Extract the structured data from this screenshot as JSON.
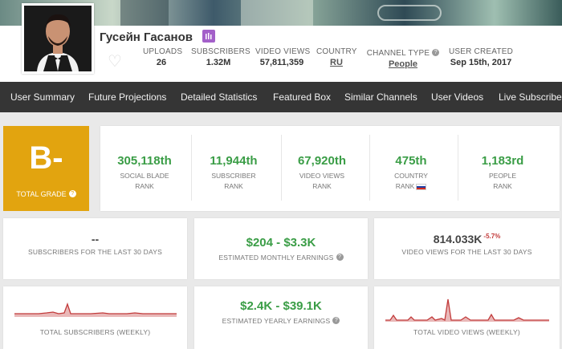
{
  "channel": {
    "name": "Гусейн Гасанов",
    "stats": [
      {
        "label": "UPLOADS",
        "value": "26"
      },
      {
        "label": "SUBSCRIBERS",
        "value": "1.32M"
      },
      {
        "label": "VIDEO VIEWS",
        "value": "57,811,359"
      },
      {
        "label": "COUNTRY",
        "value": "RU"
      },
      {
        "label": "CHANNEL TYPE",
        "value": "People"
      },
      {
        "label": "USER CREATED",
        "value": "Sep 15th, 2017"
      }
    ]
  },
  "nav": [
    "User Summary",
    "Future Projections",
    "Detailed Statistics",
    "Featured Box",
    "Similar Channels",
    "User Videos",
    "Live Subscriber"
  ],
  "grade": {
    "letter": "B-",
    "label": "TOTAL GRADE"
  },
  "ranks": [
    {
      "value": "305,118th",
      "line1": "SOCIAL BLADE",
      "line2": "RANK"
    },
    {
      "value": "11,944th",
      "line1": "SUBSCRIBER",
      "line2": "RANK"
    },
    {
      "value": "67,920th",
      "line1": "VIDEO VIEWS",
      "line2": "RANK"
    },
    {
      "value": "475th",
      "line1": "COUNTRY",
      "line2": "RANK"
    },
    {
      "value": "1,183rd",
      "line1": "PEOPLE",
      "line2": "RANK"
    }
  ],
  "summary": {
    "subs30": {
      "value": "--",
      "label": "SUBSCRIBERS FOR THE LAST 30 DAYS"
    },
    "monthly": {
      "value": "$204 - $3.3K",
      "label": "ESTIMATED MONTHLY EARNINGS"
    },
    "views30": {
      "value": "814.033K",
      "change": "-5.7%",
      "label": "VIDEO VIEWS FOR THE LAST 30 DAYS"
    },
    "weeklySubs": {
      "label": "TOTAL SUBSCRIBERS (WEEKLY)"
    },
    "yearly": {
      "value": "$2.4K - $39.1K",
      "label": "ESTIMATED YEARLY EARNINGS"
    },
    "weeklyViews": {
      "label": "TOTAL VIDEO VIEWS (WEEKLY)"
    }
  },
  "colors": {
    "accent_green": "#3a9d46",
    "grade_bg": "#e2a40f",
    "spark": "#c23b3b",
    "nav_bg": "#353535"
  },
  "icons": [
    "heart-icon",
    "info-icon",
    "russia-flag-icon",
    "verified-badge-icon"
  ]
}
